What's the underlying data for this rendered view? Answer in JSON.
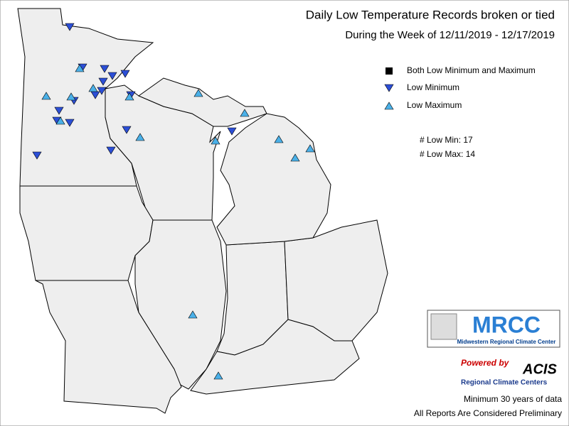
{
  "title": "Daily Low Temperature Records broken or tied",
  "subtitle": "During the Week of 12/11/2019 - 12/17/2019",
  "legend": {
    "items": [
      "Both Low Minimum and Maximum",
      "Low Minimum",
      "Low Maximum"
    ]
  },
  "counts": [
    "# Low Min: 17",
    "# Low Max: 14"
  ],
  "logos": {
    "mrcc": "MRCC",
    "mrcc_name": "Midwestern Regional Climate Center",
    "powered": "Powered by",
    "acis": "ACIS",
    "rcc": "Regional Climate Centers"
  },
  "footer": [
    "Minimum 30 years of data",
    "All Reports Are Considered Preliminary"
  ]
}
